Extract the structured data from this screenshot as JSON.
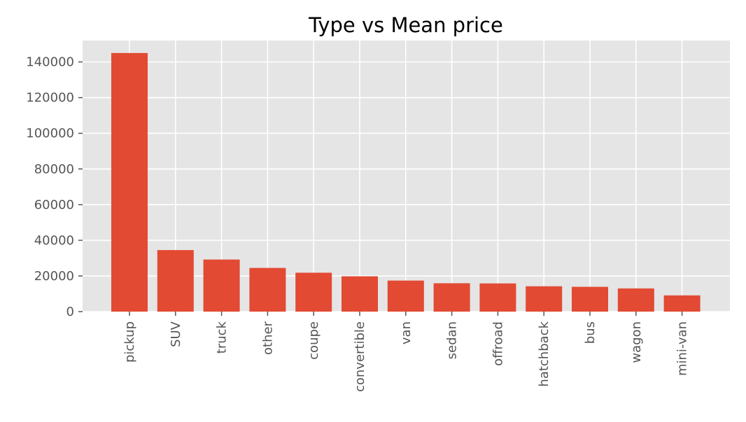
{
  "chart_data": {
    "type": "bar",
    "title": "Type vs Mean price",
    "xlabel": "",
    "ylabel": "",
    "categories": [
      "pickup",
      "SUV",
      "truck",
      "other",
      "coupe",
      "convertible",
      "van",
      "sedan",
      "offroad",
      "hatchback",
      "bus",
      "wagon",
      "mini-van"
    ],
    "values": [
      145000,
      34500,
      29200,
      24500,
      21800,
      19800,
      17400,
      15900,
      15800,
      14200,
      13900,
      13000,
      9100
    ],
    "ylim": [
      0,
      152000
    ],
    "yticks": [
      0,
      20000,
      40000,
      60000,
      80000,
      100000,
      120000,
      140000
    ],
    "grid": true,
    "legend": "none",
    "colors": {
      "bar": "#E24A33",
      "plot_background": "#E5E5E5",
      "grid": "#FFFFFF",
      "tick_text": "#555555",
      "title_text": "#000000"
    }
  }
}
